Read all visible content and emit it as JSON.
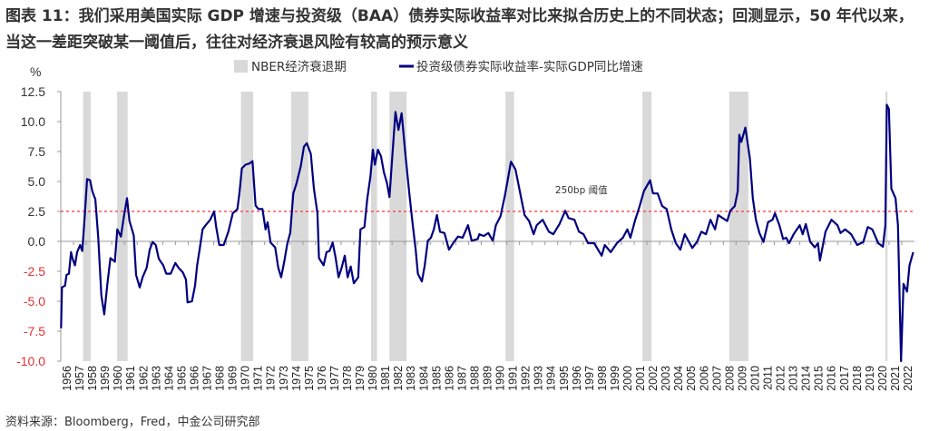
{
  "title": "图表 11：我们采用美国实际 GDP 增速与投资级（BAA）债券实际收益率对比来拟合历史上的不同状态；回测显示，50 年代以来，当这一差距突破某一阈值后，往往对经济衰退风险有较高的预示意义",
  "source": "资料来源：Bloomberg，Fred，中金公司研究部",
  "chart_data": {
    "type": "line",
    "ylabel": "%",
    "ylim": [
      -10,
      12.5
    ],
    "yticks": [
      "12.5",
      "10.0",
      "7.5",
      "5.0",
      "2.5",
      "0.0",
      "-2.5",
      "-5.0",
      "-7.5",
      "-10.0"
    ],
    "ytick_values": [
      12.5,
      10,
      7.5,
      5,
      2.5,
      0,
      -2.5,
      -5,
      -7.5,
      -10
    ],
    "xlim": [
      1956,
      2022.75
    ],
    "xticks": [
      "1956",
      "1957",
      "1958",
      "1959",
      "1960",
      "1961",
      "1962",
      "1963",
      "1964",
      "1965",
      "1966",
      "1967",
      "1968",
      "1969",
      "1970",
      "1971",
      "1972",
      "1973",
      "1974",
      "1975",
      "1976",
      "1977",
      "1978",
      "1979",
      "1980",
      "1981",
      "1982",
      "1983",
      "1984",
      "1985",
      "1986",
      "1987",
      "1988",
      "1989",
      "1990",
      "1991",
      "1992",
      "1993",
      "1994",
      "1995",
      "1996",
      "1997",
      "1998",
      "1999",
      "2000",
      "2001",
      "2002",
      "2003",
      "2004",
      "2005",
      "2006",
      "2007",
      "2008",
      "2009",
      "2010",
      "2011",
      "2012",
      "2013",
      "2014",
      "2015",
      "2016",
      "2017",
      "2018",
      "2019",
      "2020",
      "2021",
      "2022"
    ],
    "legend": {
      "placement": "top-center",
      "recession_label": "NBER经济衰退期",
      "series_label": "投资级债券实际收益率-实际GDP同比增速"
    },
    "colors": {
      "series": "#000080",
      "recession": "#d9d9d9",
      "threshold": "#ff3333",
      "negative_tick": "#e03030"
    },
    "threshold": {
      "value": 2.5,
      "label": "250bp 阈值",
      "label_x": 1996.7,
      "label_y": 4.0
    },
    "recessions": [
      [
        1957.75,
        1958.34
      ],
      [
        1960.4,
        1961.23
      ],
      [
        1970.09,
        1971.04
      ],
      [
        1974.01,
        1975.36
      ],
      [
        1980.26,
        1980.73
      ],
      [
        1981.7,
        1983.04
      ],
      [
        1990.77,
        1991.44
      ],
      [
        2001.48,
        2002.19
      ],
      [
        2008.27,
        2009.76
      ],
      [
        2020.47,
        2020.64
      ]
    ],
    "series": [
      {
        "name": "投资级债券实际收益率-实际GDP同比增速",
        "points": [
          [
            1956.02,
            -7.25
          ],
          [
            1956.09,
            -3.84
          ],
          [
            1956.33,
            -3.7
          ],
          [
            1956.45,
            -2.8
          ],
          [
            1956.64,
            -2.7
          ],
          [
            1956.8,
            -0.9
          ],
          [
            1956.92,
            -1.45
          ],
          [
            1957.11,
            -2.0
          ],
          [
            1957.28,
            -0.9
          ],
          [
            1957.51,
            -0.3
          ],
          [
            1957.68,
            -0.8
          ],
          [
            1957.87,
            2.1
          ],
          [
            1958.06,
            5.2
          ],
          [
            1958.29,
            5.1
          ],
          [
            1958.46,
            4.2
          ],
          [
            1958.7,
            3.5
          ],
          [
            1958.93,
            0.3
          ],
          [
            1959.17,
            -4.5
          ],
          [
            1959.4,
            -6.1
          ],
          [
            1959.64,
            -3.6
          ],
          [
            1959.88,
            -1.4
          ],
          [
            1960.23,
            -1.7
          ],
          [
            1960.42,
            1.0
          ],
          [
            1960.7,
            0.4
          ],
          [
            1960.94,
            2.1
          ],
          [
            1961.18,
            3.6
          ],
          [
            1961.37,
            1.7
          ],
          [
            1961.7,
            0.5
          ],
          [
            1961.89,
            -2.8
          ],
          [
            1962.17,
            -3.85
          ],
          [
            1962.4,
            -3.0
          ],
          [
            1962.72,
            -2.2
          ],
          [
            1962.95,
            -0.7
          ],
          [
            1963.18,
            -0.05
          ],
          [
            1963.43,
            -0.3
          ],
          [
            1963.66,
            -1.45
          ],
          [
            1964.01,
            -2.0
          ],
          [
            1964.25,
            -2.7
          ],
          [
            1964.6,
            -2.7
          ],
          [
            1964.96,
            -1.8
          ],
          [
            1965.2,
            -2.2
          ],
          [
            1965.55,
            -2.6
          ],
          [
            1965.79,
            -3.2
          ],
          [
            1965.91,
            -5.1
          ],
          [
            1966.26,
            -5.0
          ],
          [
            1966.5,
            -3.7
          ],
          [
            1966.66,
            -2.0
          ],
          [
            1966.85,
            -0.7
          ],
          [
            1967.09,
            1.0
          ],
          [
            1967.33,
            1.35
          ],
          [
            1967.68,
            1.8
          ],
          [
            1967.99,
            2.5
          ],
          [
            1968.15,
            1.2
          ],
          [
            1968.39,
            -0.3
          ],
          [
            1968.74,
            -0.3
          ],
          [
            1969.1,
            0.8
          ],
          [
            1969.45,
            2.35
          ],
          [
            1969.81,
            2.7
          ],
          [
            1969.97,
            4.0
          ],
          [
            1970.16,
            6.1
          ],
          [
            1970.45,
            6.4
          ],
          [
            1970.75,
            6.5
          ],
          [
            1970.99,
            6.7
          ],
          [
            1971.23,
            3.0
          ],
          [
            1971.46,
            2.7
          ],
          [
            1971.77,
            2.7
          ],
          [
            1972.01,
            1.0
          ],
          [
            1972.17,
            1.6
          ],
          [
            1972.4,
            -0.1
          ],
          [
            1972.76,
            -0.5
          ],
          [
            1973.0,
            -2.2
          ],
          [
            1973.23,
            -3.0
          ],
          [
            1973.47,
            -1.7
          ],
          [
            1973.71,
            -0.2
          ],
          [
            1973.94,
            0.7
          ],
          [
            1974.18,
            4.0
          ],
          [
            1974.42,
            4.8
          ],
          [
            1974.77,
            6.3
          ],
          [
            1975.01,
            7.9
          ],
          [
            1975.24,
            8.2
          ],
          [
            1975.55,
            7.3
          ],
          [
            1975.79,
            4.4
          ],
          [
            1976.07,
            2.35
          ],
          [
            1976.19,
            -1.4
          ],
          [
            1976.55,
            -2.0
          ],
          [
            1976.78,
            -0.9
          ],
          [
            1977.01,
            -0.8
          ],
          [
            1977.26,
            -0.1
          ],
          [
            1977.49,
            -1.4
          ],
          [
            1977.72,
            -3.0
          ],
          [
            1977.96,
            -2.2
          ],
          [
            1978.2,
            -1.2
          ],
          [
            1978.43,
            -3.0
          ],
          [
            1978.67,
            -2.1
          ],
          [
            1978.91,
            -3.5
          ],
          [
            1979.26,
            -3.0
          ],
          [
            1979.43,
            1.0
          ],
          [
            1979.74,
            1.2
          ],
          [
            1979.97,
            3.6
          ],
          [
            1980.21,
            5.4
          ],
          [
            1980.4,
            7.65
          ],
          [
            1980.56,
            6.4
          ],
          [
            1980.8,
            7.65
          ],
          [
            1981.04,
            7.1
          ],
          [
            1981.27,
            5.75
          ],
          [
            1981.51,
            4.85
          ],
          [
            1981.7,
            3.7
          ],
          [
            1981.94,
            7.4
          ],
          [
            1982.17,
            10.8
          ],
          [
            1982.4,
            9.3
          ],
          [
            1982.65,
            10.7
          ],
          [
            1982.97,
            7.0
          ],
          [
            1983.28,
            3.7
          ],
          [
            1983.52,
            1.35
          ],
          [
            1983.75,
            -0.7
          ],
          [
            1983.92,
            -2.7
          ],
          [
            1984.23,
            -3.35
          ],
          [
            1984.46,
            -2.0
          ],
          [
            1984.7,
            0.05
          ],
          [
            1984.94,
            0.3
          ],
          [
            1985.17,
            1.0
          ],
          [
            1985.41,
            2.2
          ],
          [
            1985.65,
            0.8
          ],
          [
            1986.0,
            0.7
          ],
          [
            1986.35,
            -0.7
          ],
          [
            1986.71,
            -0.1
          ],
          [
            1987.06,
            0.4
          ],
          [
            1987.42,
            0.3
          ],
          [
            1987.84,
            1.35
          ],
          [
            1988.13,
            0.05
          ],
          [
            1988.6,
            0.2
          ],
          [
            1988.72,
            0.6
          ],
          [
            1989.07,
            0.45
          ],
          [
            1989.43,
            0.7
          ],
          [
            1989.78,
            0.05
          ],
          [
            1990.02,
            1.35
          ],
          [
            1990.38,
            2.1
          ],
          [
            1990.73,
            3.85
          ],
          [
            1990.96,
            5.2
          ],
          [
            1991.2,
            6.65
          ],
          [
            1991.55,
            6.0
          ],
          [
            1991.91,
            4.1
          ],
          [
            1992.26,
            2.2
          ],
          [
            1992.62,
            1.7
          ],
          [
            1992.97,
            0.6
          ],
          [
            1993.21,
            1.35
          ],
          [
            1993.68,
            1.8
          ],
          [
            1994.16,
            0.8
          ],
          [
            1994.51,
            0.6
          ],
          [
            1994.99,
            1.45
          ],
          [
            1995.45,
            2.55
          ],
          [
            1995.7,
            1.95
          ],
          [
            1996.16,
            1.8
          ],
          [
            1996.52,
            0.8
          ],
          [
            1996.87,
            0.6
          ],
          [
            1997.23,
            -0.15
          ],
          [
            1997.7,
            -0.15
          ],
          [
            1998.29,
            -1.2
          ],
          [
            1998.53,
            -0.3
          ],
          [
            1999.0,
            -0.9
          ],
          [
            1999.48,
            -0.15
          ],
          [
            1999.95,
            0.3
          ],
          [
            2000.3,
            1.0
          ],
          [
            2000.54,
            0.3
          ],
          [
            2000.89,
            1.7
          ],
          [
            2001.25,
            2.9
          ],
          [
            2001.6,
            4.2
          ],
          [
            2002.08,
            5.1
          ],
          [
            2002.31,
            4.0
          ],
          [
            2002.67,
            4.0
          ],
          [
            2003.02,
            2.95
          ],
          [
            2003.38,
            2.7
          ],
          [
            2003.73,
            1.0
          ],
          [
            2004.09,
            -0.15
          ],
          [
            2004.44,
            -0.7
          ],
          [
            2004.79,
            0.6
          ],
          [
            2005.38,
            -0.55
          ],
          [
            2005.74,
            -0.05
          ],
          [
            2006.09,
            0.8
          ],
          [
            2006.45,
            0.6
          ],
          [
            2006.8,
            1.8
          ],
          [
            2007.16,
            1.0
          ],
          [
            2007.4,
            2.2
          ],
          [
            2007.75,
            1.95
          ],
          [
            2008.11,
            1.7
          ],
          [
            2008.34,
            2.55
          ],
          [
            2008.7,
            2.95
          ],
          [
            2008.93,
            4.2
          ],
          [
            2009.05,
            8.9
          ],
          [
            2009.21,
            8.3
          ],
          [
            2009.53,
            9.5
          ],
          [
            2009.88,
            6.9
          ],
          [
            2010.11,
            3.6
          ],
          [
            2010.35,
            1.8
          ],
          [
            2010.63,
            0.7
          ],
          [
            2010.94,
            -0.05
          ],
          [
            2011.3,
            1.6
          ],
          [
            2011.65,
            1.8
          ],
          [
            2011.84,
            2.35
          ],
          [
            2012.19,
            1.35
          ],
          [
            2012.48,
            0.2
          ],
          [
            2012.72,
            0.3
          ],
          [
            2012.95,
            -0.15
          ],
          [
            2013.3,
            0.6
          ],
          [
            2013.78,
            1.35
          ],
          [
            2014.01,
            0.6
          ],
          [
            2014.25,
            1.45
          ],
          [
            2014.6,
            -0.05
          ],
          [
            2014.96,
            -0.5
          ],
          [
            2015.2,
            -0.15
          ],
          [
            2015.36,
            -1.6
          ],
          [
            2015.79,
            0.8
          ],
          [
            2016.26,
            1.8
          ],
          [
            2016.73,
            1.35
          ],
          [
            2016.97,
            0.7
          ],
          [
            2017.33,
            1.0
          ],
          [
            2017.8,
            0.6
          ],
          [
            2018.27,
            -0.3
          ],
          [
            2018.75,
            -0.05
          ],
          [
            2019.1,
            1.2
          ],
          [
            2019.45,
            1.0
          ],
          [
            2019.92,
            -0.15
          ],
          [
            2020.28,
            -0.45
          ],
          [
            2020.47,
            1.35
          ],
          [
            2020.59,
            11.4
          ],
          [
            2020.75,
            11.05
          ],
          [
            2020.94,
            4.4
          ],
          [
            2021.27,
            3.6
          ],
          [
            2021.46,
            1.35
          ],
          [
            2021.7,
            -10.0
          ],
          [
            2021.89,
            -3.55
          ],
          [
            2022.17,
            -4.2
          ],
          [
            2022.36,
            -2.0
          ],
          [
            2022.65,
            -0.9
          ]
        ]
      }
    ]
  }
}
